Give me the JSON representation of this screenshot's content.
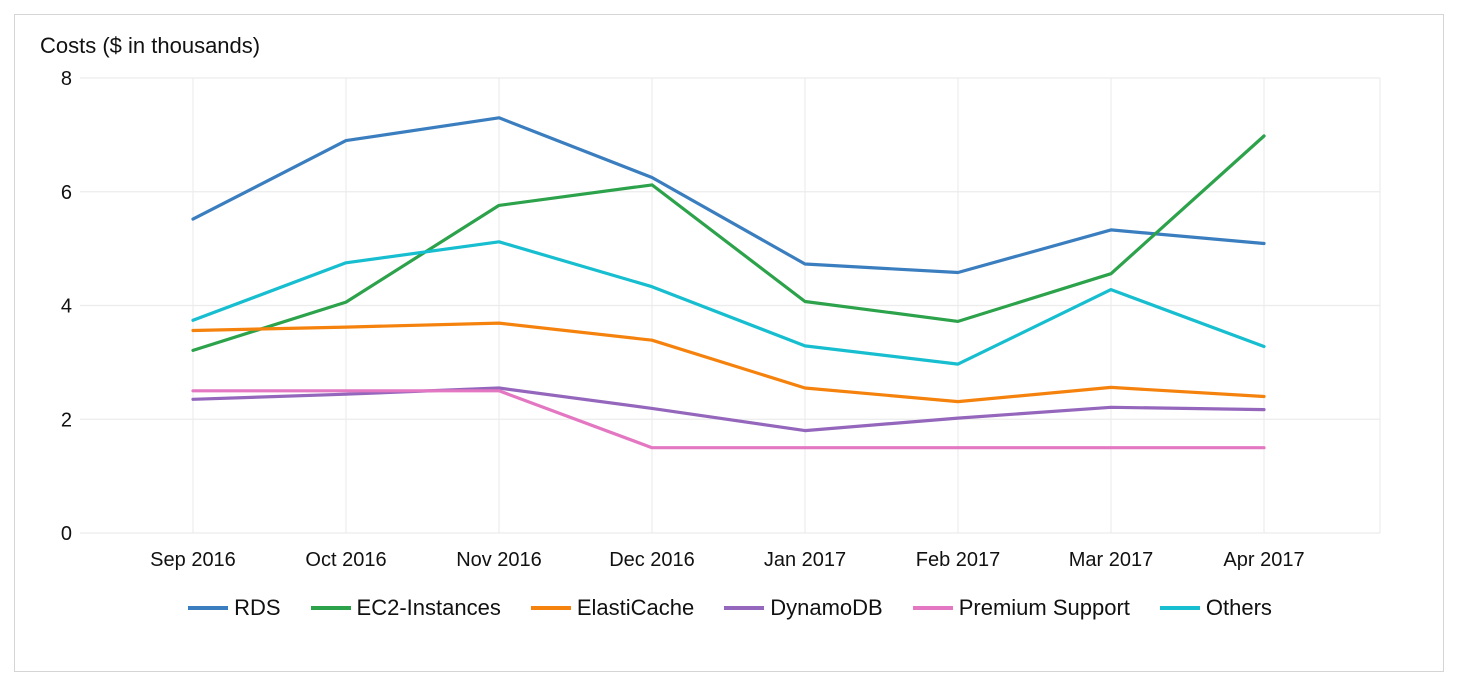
{
  "chart_data": {
    "type": "line",
    "title": "Costs ($ in thousands)",
    "xlabel": "",
    "ylabel": "",
    "categories": [
      "Sep 2016",
      "Oct 2016",
      "Nov 2016",
      "Dec 2016",
      "Jan 2017",
      "Feb 2017",
      "Mar 2017",
      "Apr 2017"
    ],
    "ylim": [
      0,
      8
    ],
    "yticks": [
      0,
      2,
      4,
      6,
      8
    ],
    "grid": true,
    "legend_position": "bottom",
    "series": [
      {
        "name": "RDS",
        "color": "#3a7ebf",
        "values": [
          5.52,
          6.9,
          7.3,
          6.25,
          4.73,
          4.58,
          5.33,
          5.09
        ]
      },
      {
        "name": "EC2-Instances",
        "color": "#2ca24b",
        "values": [
          3.21,
          4.06,
          5.76,
          6.12,
          4.07,
          3.72,
          4.56,
          6.98
        ]
      },
      {
        "name": "ElastiCache",
        "color": "#f5820d",
        "values": [
          3.56,
          3.62,
          3.69,
          3.39,
          2.55,
          2.31,
          2.56,
          2.4
        ]
      },
      {
        "name": "DynamoDB",
        "color": "#9467bd",
        "values": [
          2.35,
          2.44,
          2.55,
          2.19,
          1.8,
          2.02,
          2.21,
          2.17
        ]
      },
      {
        "name": "Premium Support",
        "color": "#e377c2",
        "values": [
          2.5,
          2.5,
          2.5,
          1.5,
          1.5,
          1.5,
          1.5,
          1.5
        ]
      },
      {
        "name": "Others",
        "color": "#17becf",
        "values": [
          3.74,
          4.75,
          5.12,
          4.33,
          3.29,
          2.97,
          4.28,
          3.28
        ]
      }
    ]
  }
}
